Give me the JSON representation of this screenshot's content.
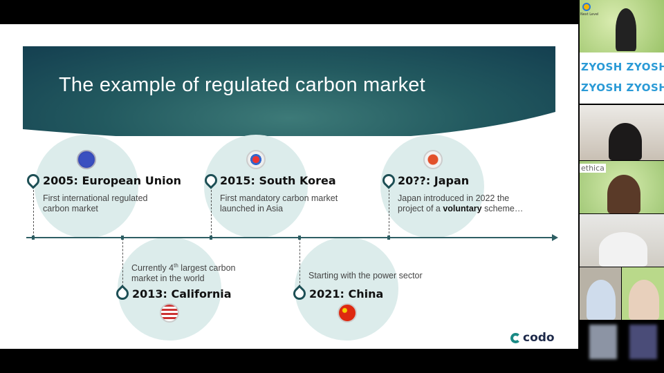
{
  "slide": {
    "title": "The example of regulated carbon market",
    "events": [
      {
        "title": "2005: European Union",
        "desc1": "First international regulated",
        "desc2": "carbon market",
        "flag": "eu-flag-icon"
      },
      {
        "title": "2015: South Korea",
        "desc1": "First mandatory carbon market",
        "desc2": "launched in Asia",
        "flag": "south-korea-flag-icon"
      },
      {
        "title": "20??: Japan",
        "desc1": "Japan introduced in 2022 the",
        "desc2_pre": "project of a ",
        "desc2_bold": "voluntary",
        "desc2_post": " scheme…",
        "flag": "japan-flag-icon"
      },
      {
        "title": "2013: California",
        "desc1_pre": "Currently 4",
        "desc1_sup": "th",
        "desc1_post": "  largest carbon",
        "desc2": "market in the world",
        "flag": "us-flag-icon"
      },
      {
        "title": "2021: China",
        "desc1": "Starting with the power sector",
        "flag": "china-flag-icon"
      }
    ],
    "logo": "codo",
    "colors": {
      "accent": "#1d4f55",
      "circle": "#dceceb",
      "logo": "#1a8a85"
    }
  },
  "participants": {
    "tile1_label": "Next Level",
    "zyosh": "ZYOSH",
    "ethica": "ethica"
  }
}
